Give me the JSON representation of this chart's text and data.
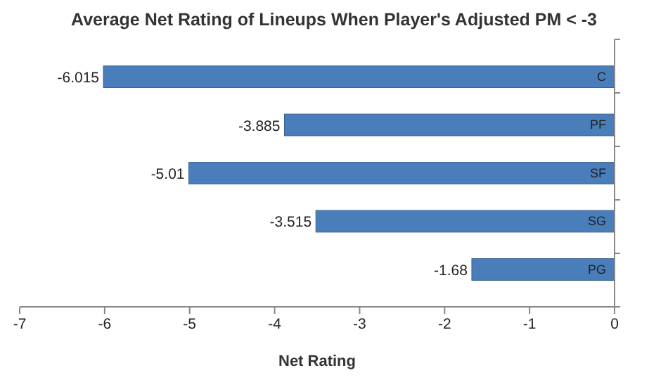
{
  "chart_data": {
    "type": "bar",
    "orientation": "horizontal",
    "title": "Average Net Rating of Lineups When Player's Adjusted PM < -3",
    "xlabel": "Net Rating",
    "categories": [
      "C",
      "PF",
      "SF",
      "SG",
      "PG"
    ],
    "values": [
      -6.015,
      -3.885,
      -5.01,
      -3.515,
      -1.68
    ],
    "color": "#4a7ebb",
    "xlim": [
      -7,
      0
    ],
    "xticks": [
      -7,
      -6,
      -5,
      -4,
      -3,
      -2,
      -1,
      0
    ],
    "grid": false,
    "data_labels": true
  }
}
